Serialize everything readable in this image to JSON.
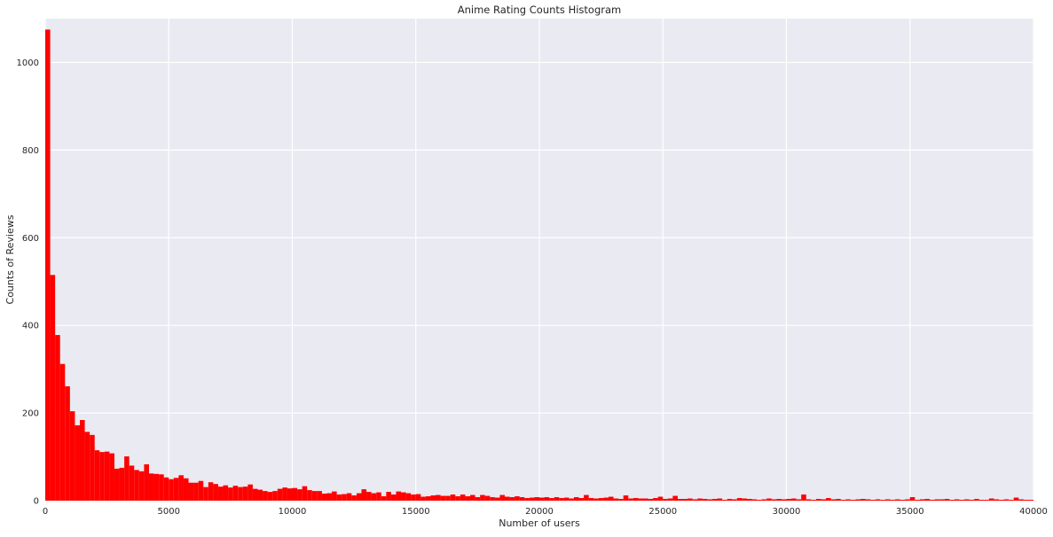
{
  "chart_data": {
    "type": "bar",
    "title": "Anime Rating Counts Histogram",
    "xlabel": "Number of users",
    "ylabel": "Counts of Reviews",
    "xlim": [
      0,
      40000
    ],
    "ylim": [
      0,
      1100
    ],
    "xticks": [
      "0",
      "5000",
      "10000",
      "15000",
      "20000",
      "25000",
      "30000",
      "35000",
      "40000"
    ],
    "yticks": [
      "0",
      "200",
      "400",
      "600",
      "800",
      "1000"
    ],
    "grid": true,
    "legend": "none",
    "bin_width": 200,
    "bar_color": "#ff0000",
    "background_color": "#eaeaf2",
    "gridline_color": "#ffffff",
    "bins_start": 0,
    "values": [
      1075,
      515,
      378,
      312,
      261,
      204,
      172,
      184,
      157,
      150,
      115,
      111,
      112,
      108,
      73,
      75,
      101,
      80,
      70,
      67,
      83,
      62,
      61,
      60,
      53,
      49,
      52,
      58,
      51,
      41,
      41,
      45,
      31,
      42,
      38,
      32,
      35,
      30,
      34,
      31,
      32,
      37,
      27,
      25,
      22,
      20,
      22,
      27,
      30,
      28,
      29,
      26,
      33,
      24,
      22,
      22,
      16,
      17,
      21,
      14,
      15,
      17,
      12,
      17,
      26,
      20,
      17,
      19,
      10,
      20,
      14,
      21,
      19,
      17,
      14,
      15,
      9,
      10,
      12,
      13,
      11,
      11,
      14,
      10,
      14,
      10,
      13,
      8,
      13,
      11,
      8,
      7,
      13,
      9,
      8,
      10,
      8,
      6,
      7,
      8,
      7,
      8,
      6,
      8,
      6,
      7,
      5,
      8,
      6,
      13,
      6,
      5,
      6,
      7,
      9,
      5,
      4,
      12,
      5,
      6,
      5,
      5,
      4,
      6,
      9,
      4,
      5,
      11,
      4,
      4,
      5,
      3,
      5,
      4,
      3,
      4,
      5,
      2,
      4,
      3,
      6,
      5,
      4,
      3,
      2,
      3,
      5,
      3,
      4,
      3,
      4,
      5,
      3,
      14,
      3,
      2,
      4,
      3,
      6,
      3,
      4,
      2,
      3,
      2,
      3,
      4,
      3,
      2,
      3,
      2,
      3,
      2,
      3,
      2,
      3,
      8,
      2,
      3,
      4,
      2,
      3,
      3,
      4,
      2,
      3,
      2,
      3,
      2,
      4,
      2,
      2,
      5,
      3,
      2,
      3,
      2,
      7,
      3,
      2,
      2,
      3,
      2,
      3,
      4,
      2,
      1,
      2,
      3,
      2,
      1,
      3,
      2,
      1,
      5,
      4,
      2,
      1,
      5,
      2,
      1,
      1,
      2,
      3,
      2,
      1,
      1,
      2,
      1,
      4,
      3,
      2,
      1,
      2,
      1,
      2,
      1,
      2,
      1,
      1,
      2,
      1,
      0,
      2,
      1,
      2,
      1,
      0,
      2,
      1,
      2,
      1,
      0,
      2,
      1,
      2,
      1,
      2,
      1,
      0,
      2,
      1,
      2,
      2,
      1,
      4,
      1,
      2,
      3,
      1,
      2,
      1,
      1,
      2,
      1,
      0,
      2,
      1,
      1,
      2,
      1,
      1,
      2,
      1,
      2,
      1,
      2,
      1,
      0,
      2,
      1,
      1,
      2,
      1,
      2,
      1,
      2,
      1,
      2,
      1,
      0,
      2,
      1,
      2,
      2,
      1,
      2,
      1,
      1,
      2,
      1,
      3,
      2,
      1,
      2,
      1,
      1,
      2,
      1,
      2,
      1
    ]
  }
}
